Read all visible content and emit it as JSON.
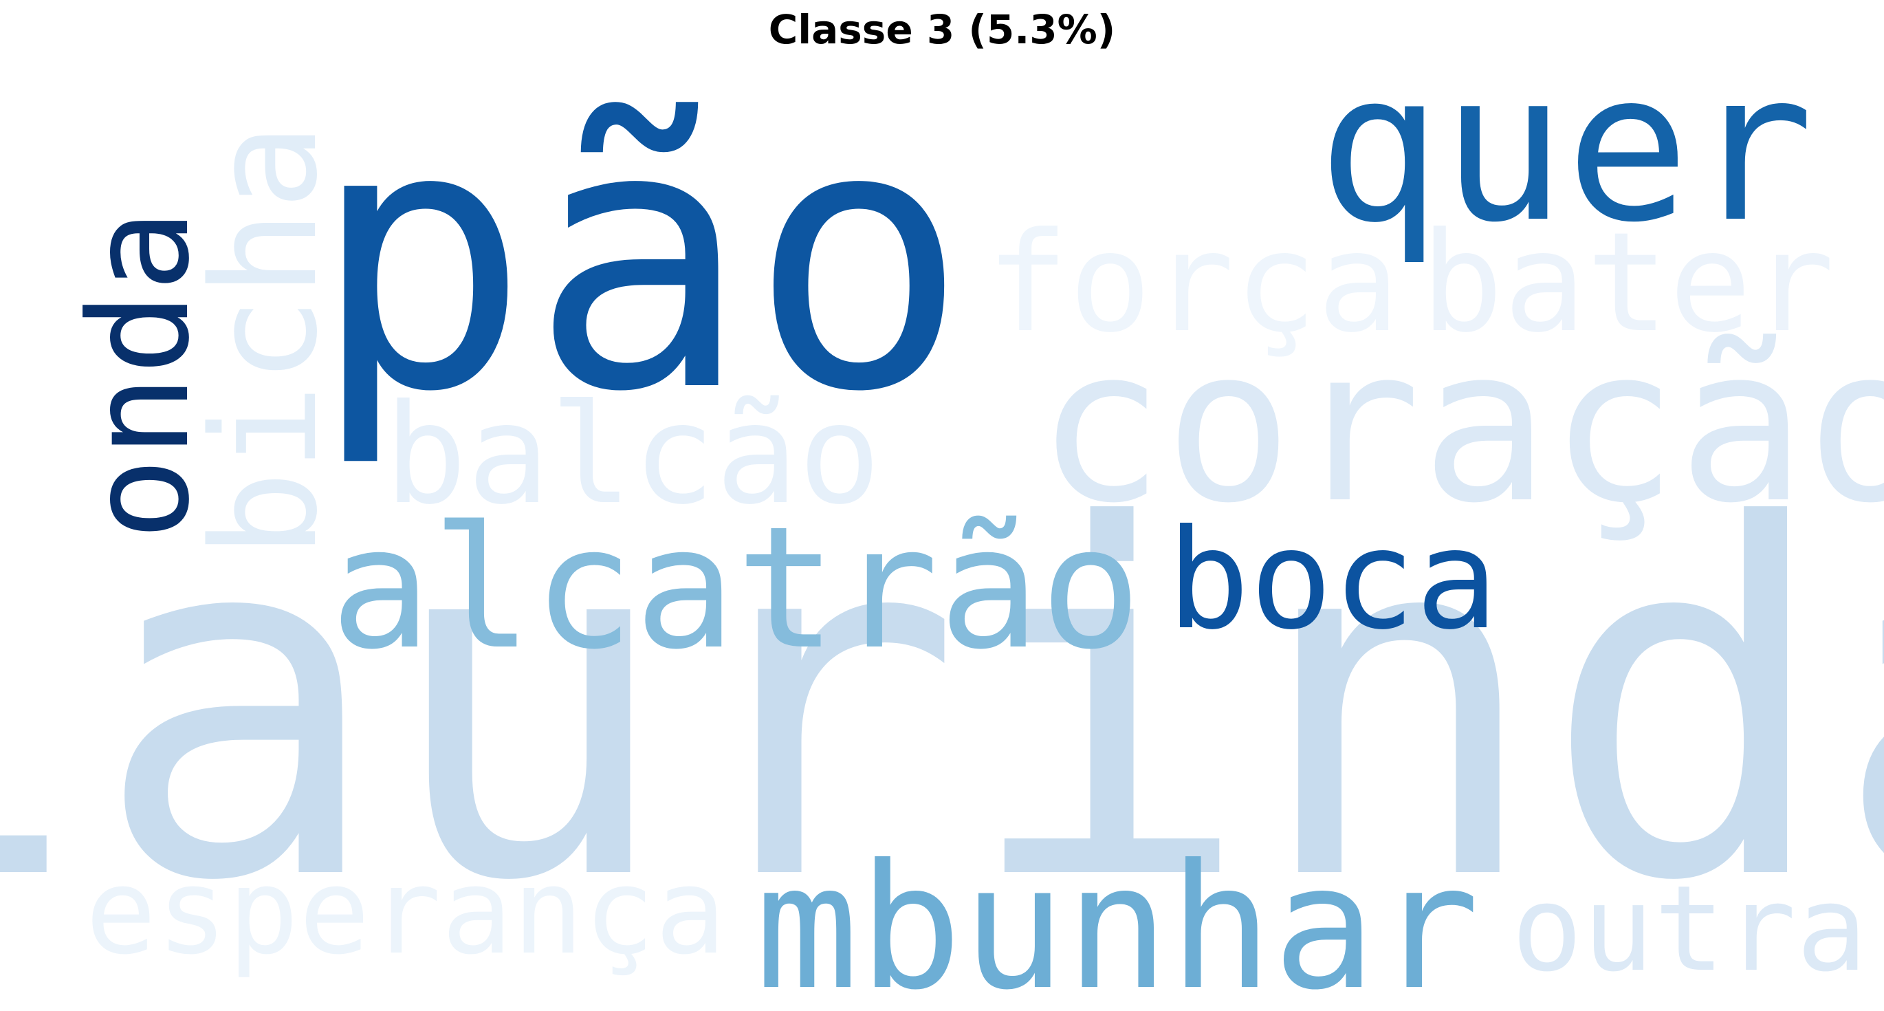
{
  "chart_data": {
    "type": "wordcloud",
    "title": "Classe 3 (5.3%)",
    "colormap": "Blues",
    "words": [
      {
        "text": "laurinda",
        "weight": 1.0,
        "color": "#c8dcee",
        "orientation": "horizontal"
      },
      {
        "text": "pão",
        "weight": 0.62,
        "color": "#0d56a1",
        "orientation": "horizontal"
      },
      {
        "text": "coração",
        "weight": 0.37,
        "color": "#dce9f6",
        "orientation": "horizontal"
      },
      {
        "text": "quer",
        "weight": 0.35,
        "color": "#1463a9",
        "orientation": "horizontal"
      },
      {
        "text": "mbunhar",
        "weight": 0.29,
        "color": "#6daed5",
        "orientation": "horizontal"
      },
      {
        "text": "alcatrão",
        "weight": 0.28,
        "color": "#85bcdc",
        "orientation": "horizontal"
      },
      {
        "text": "bicha",
        "weight": 0.25,
        "color": "#e1edf8",
        "orientation": "vertical"
      },
      {
        "text": "força",
        "weight": 0.23,
        "color": "#eef5fc",
        "orientation": "horizontal"
      },
      {
        "text": "bater",
        "weight": 0.23,
        "color": "#ecf3fb",
        "orientation": "horizontal"
      },
      {
        "text": "balcão",
        "weight": 0.23,
        "color": "#e6f0fa",
        "orientation": "horizontal"
      },
      {
        "text": "boca",
        "weight": 0.23,
        "color": "#0c53a0",
        "orientation": "horizontal"
      },
      {
        "text": "onda",
        "weight": 0.23,
        "color": "#08306b",
        "orientation": "vertical"
      },
      {
        "text": "esperança",
        "weight": 0.2,
        "color": "#ecf4fb",
        "orientation": "horizontal"
      },
      {
        "text": "outra",
        "weight": 0.2,
        "color": "#dce9f6",
        "orientation": "horizontal"
      }
    ]
  }
}
